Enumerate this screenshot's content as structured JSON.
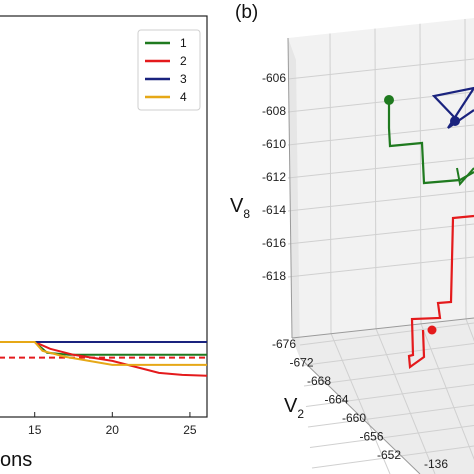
{
  "chart_data": [
    {
      "type": "line",
      "title": "",
      "xlabel": "ons",
      "xticks": [
        "15",
        "20",
        "25"
      ],
      "xlim": [
        12.7,
        26.1
      ],
      "ylim": [
        0,
        1
      ],
      "grid": false,
      "legend_placement": "top-right",
      "series": [
        {
          "name": "1",
          "color": "#1f7a1f",
          "points": [
            [
              12.7,
              0.187
            ],
            [
              15.0,
              0.187
            ],
            [
              15.8,
              0.16
            ],
            [
              17.2,
              0.155
            ],
            [
              26.1,
              0.155
            ]
          ]
        },
        {
          "name": "2",
          "color": "#e41a1c",
          "points": [
            [
              12.7,
              0.187
            ],
            [
              15.0,
              0.187
            ],
            [
              16.0,
              0.17
            ],
            [
              17.5,
              0.155
            ],
            [
              20.0,
              0.14
            ],
            [
              22.0,
              0.12
            ],
            [
              23.0,
              0.11
            ],
            [
              24.5,
              0.105
            ],
            [
              26.1,
              0.103
            ]
          ]
        },
        {
          "name": "3",
          "color": "#1a237e",
          "points": [
            [
              12.7,
              0.187
            ],
            [
              26.1,
              0.187
            ]
          ]
        },
        {
          "name": "4",
          "color": "#e6a817",
          "points": [
            [
              12.7,
              0.187
            ],
            [
              15.0,
              0.187
            ],
            [
              15.5,
              0.165
            ],
            [
              17.0,
              0.15
            ],
            [
              20.0,
              0.13
            ],
            [
              22.0,
              0.13
            ],
            [
              26.1,
              0.13
            ]
          ]
        }
      ],
      "reference_line": {
        "y": 0.148,
        "color": "#e41a1c",
        "style": "dashed"
      }
    },
    {
      "type": "line3d",
      "panel_label": "(b)",
      "zlabel": "V",
      "zlabel_sub": "8",
      "ylabel": "V",
      "ylabel_sub": "2",
      "zticks": [
        "-606",
        "-608",
        "-610",
        "-612",
        "-614",
        "-616",
        "-618"
      ],
      "yticks": [
        "-676",
        "-672",
        "-668",
        "-664",
        "-660",
        "-656",
        "-652"
      ],
      "xticks_partial": [
        "-136"
      ],
      "grid": true,
      "series": [
        {
          "name": "1",
          "color": "#1f7a1f"
        },
        {
          "name": "2",
          "color": "#e41a1c"
        },
        {
          "name": "3",
          "color": "#1a237e"
        }
      ]
    }
  ]
}
